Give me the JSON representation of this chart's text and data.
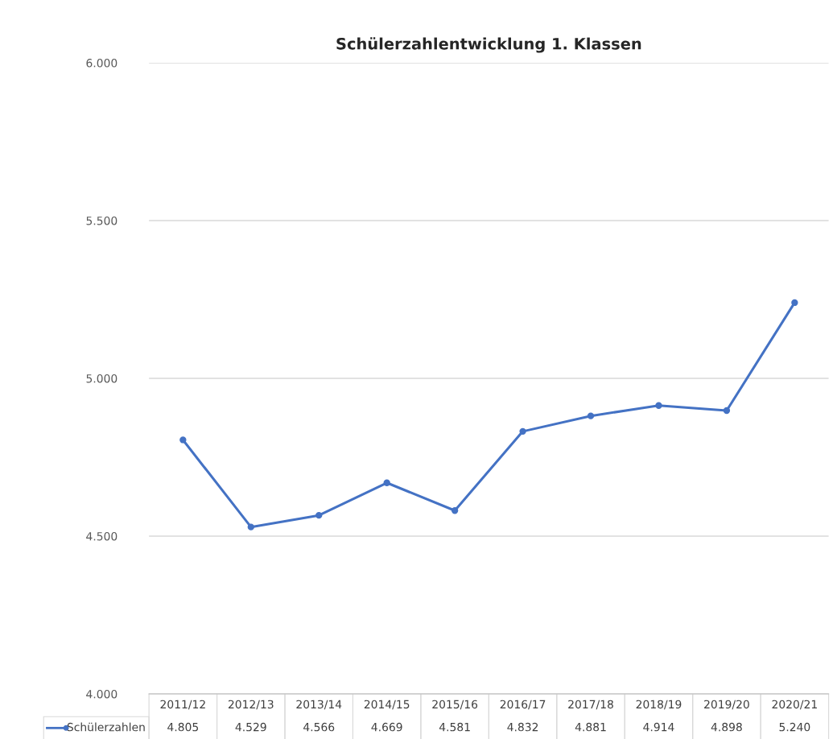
{
  "chart_data": {
    "type": "line",
    "title": "Schülerzahlentwicklung 1. Klassen",
    "categories": [
      "2011/12",
      "2012/13",
      "2013/14",
      "2014/15",
      "2015/16",
      "2016/17",
      "2017/18",
      "2018/19",
      "2019/20",
      "2020/21"
    ],
    "series": [
      {
        "name": "Schülerzahlen",
        "color": "#4472c4",
        "values": [
          4805,
          4529,
          4566,
          4669,
          4581,
          4832,
          4881,
          4914,
          4898,
          5240
        ],
        "value_labels": [
          "4.805",
          "4.529",
          "4.566",
          "4.669",
          "4.581",
          "4.832",
          "4.881",
          "4.914",
          "4.898",
          "5.240"
        ]
      }
    ],
    "ylim": [
      4000,
      6000
    ],
    "yticks": [
      {
        "value": 4000,
        "label": "4.000"
      },
      {
        "value": 4500,
        "label": "4.500"
      },
      {
        "value": 5000,
        "label": "5.000"
      },
      {
        "value": 5500,
        "label": "5.500"
      },
      {
        "value": 6000,
        "label": "6.000"
      }
    ],
    "grid": "y",
    "marker": "circle",
    "line_style": "solid"
  }
}
